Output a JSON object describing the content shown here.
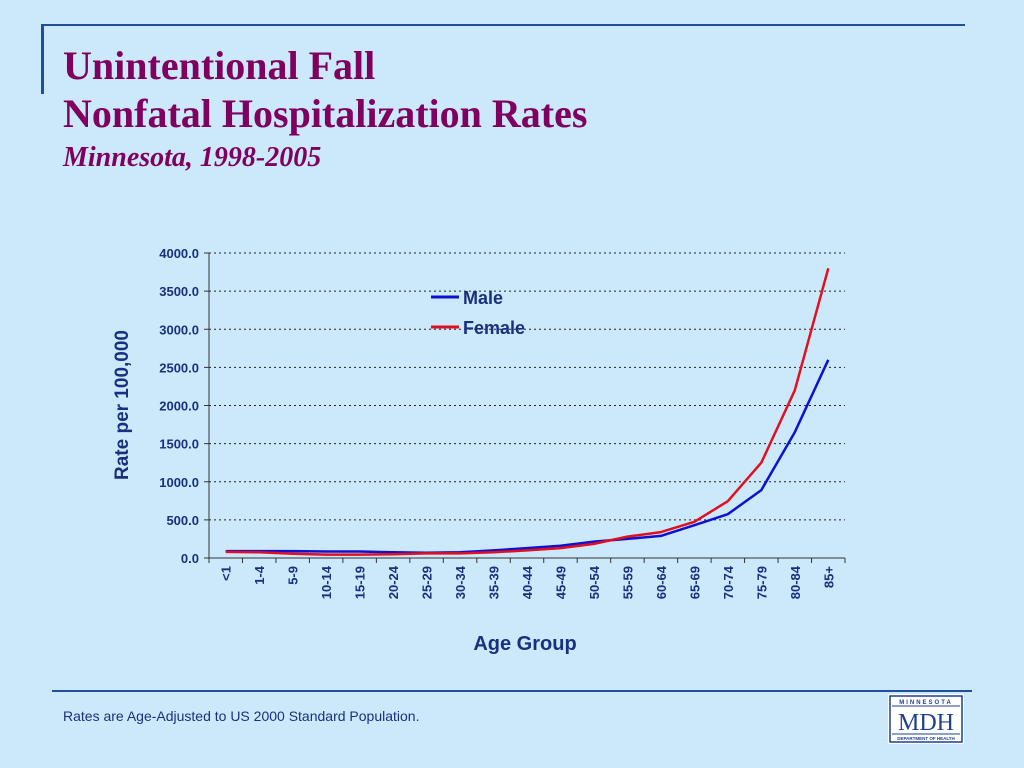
{
  "slide": {
    "title_line1": "Unintentional Fall",
    "title_line2": "Nonfatal Hospitalization Rates",
    "subtitle": "Minnesota, 1998-2005",
    "footnote": "Rates are Age-Adjusted to US 2000 Standard Population."
  },
  "logo": {
    "top_text": "MINNESOTA",
    "main_text": "MDH",
    "bottom_text": "DEPARTMENT OF HEALTH"
  },
  "colors": {
    "title": "#800060",
    "axis_text": "#1a2f80",
    "male": "#1010d0",
    "female": "#e01020",
    "rule": "#1f4e9c",
    "background": "#cce9fb"
  },
  "chart_data": {
    "type": "line",
    "xlabel": "Age Group",
    "ylabel": "Rate per 100,000",
    "ylim": [
      0,
      4000
    ],
    "yticks": [
      "0.0",
      "500.0",
      "1000.0",
      "1500.0",
      "2000.0",
      "2500.0",
      "3000.0",
      "3500.0",
      "4000.0"
    ],
    "grid": "horizontal-dotted",
    "legend_position": "top-center",
    "categories": [
      "<1",
      "1-4",
      "5-9",
      "10-14",
      "15-19",
      "20-24",
      "25-29",
      "30-34",
      "35-39",
      "40-44",
      "45-49",
      "50-54",
      "55-59",
      "60-64",
      "65-69",
      "70-74",
      "75-79",
      "80-84",
      "85+"
    ],
    "series": [
      {
        "name": "Male",
        "values": [
          90,
          90,
          90,
          85,
          85,
          75,
          70,
          75,
          100,
          130,
          160,
          215,
          250,
          290,
          430,
          575,
          890,
          1650,
          2600
        ]
      },
      {
        "name": "Female",
        "values": [
          80,
          75,
          55,
          45,
          45,
          50,
          60,
          60,
          75,
          100,
          130,
          185,
          280,
          340,
          475,
          745,
          1250,
          2200,
          3800
        ]
      }
    ]
  }
}
